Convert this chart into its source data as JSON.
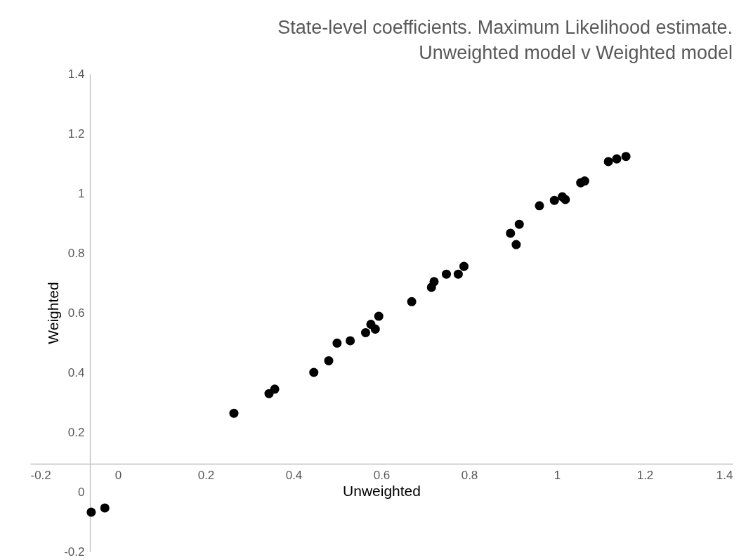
{
  "chart_data": {
    "type": "scatter",
    "title": "State-level coefficients. Maximum Likelihood estimate.\nUnweighted model v Weighted model",
    "xlabel": "Unweighted",
    "ylabel": "Weighted",
    "x": [
      -0.061,
      -0.03,
      0.264,
      0.344,
      0.357,
      0.446,
      0.48,
      0.499,
      0.529,
      0.564,
      0.576,
      0.586,
      0.594,
      0.669,
      0.714,
      0.72,
      0.748,
      0.775,
      0.788,
      0.894,
      0.907,
      0.914,
      0.96,
      0.994,
      1.012,
      1.019,
      1.054,
      1.063,
      1.117,
      1.136,
      1.157
    ],
    "values": [
      -0.068,
      -0.054,
      0.263,
      0.329,
      0.344,
      0.4,
      0.439,
      0.498,
      0.506,
      0.533,
      0.561,
      0.545,
      0.588,
      0.637,
      0.685,
      0.704,
      0.729,
      0.729,
      0.755,
      0.866,
      0.828,
      0.896,
      0.958,
      0.976,
      0.988,
      0.979,
      1.035,
      1.041,
      1.106,
      1.115,
      1.123
    ],
    "color": "#000000",
    "marker": "circle",
    "grid": false,
    "xlim": [
      -0.2,
      1.4
    ],
    "ylim": [
      -0.2,
      1.4
    ],
    "xticks": [
      -0.2,
      0,
      0.2,
      0.4,
      0.6,
      0.8,
      1,
      1.2,
      1.4
    ],
    "yticks": [
      -0.2,
      0,
      0.2,
      0.4,
      0.6,
      0.8,
      1,
      1.2,
      1.4
    ]
  }
}
